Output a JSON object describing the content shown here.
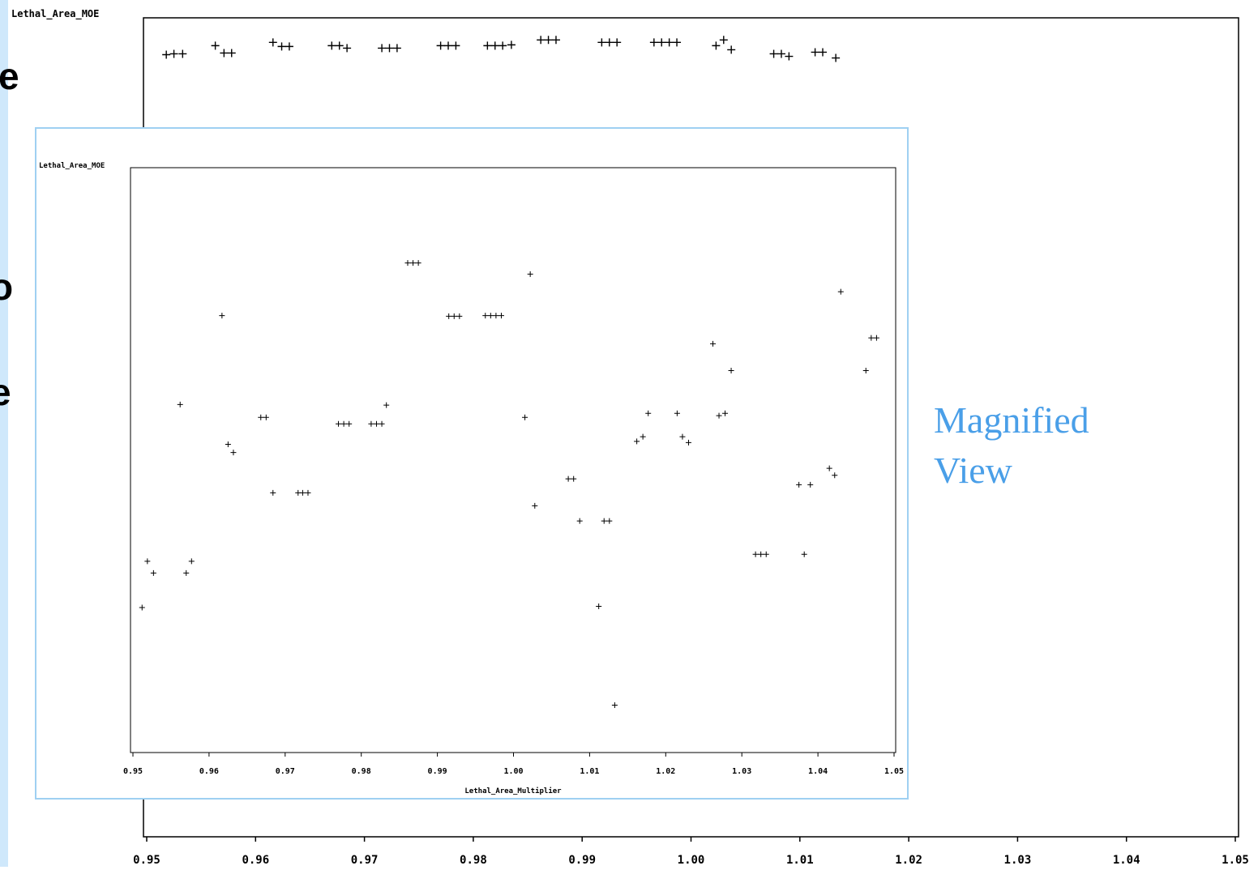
{
  "colors": {
    "slide_accent": "#cfe8fb",
    "inset_border": "#9fd0f2",
    "annotation": "#4a9fe8",
    "mark": "#000000"
  },
  "slide_text_fragments": [
    "e",
    "o",
    "e"
  ],
  "annotation": {
    "line1": "Magnified",
    "line2": "View"
  },
  "chart_data": [
    {
      "id": "full-plot",
      "type": "scatter",
      "title": "",
      "xlabel": "",
      "ylabel": "Lethal_Area_MOE",
      "xlim": [
        0.95,
        1.05
      ],
      "ylim": [
        0,
        1
      ],
      "x_ticks": [
        "0.95",
        "0.96",
        "0.97",
        "0.98",
        "0.99",
        "1.00",
        "1.01",
        "1.02",
        "1.03",
        "1.04",
        "1.05"
      ],
      "grid": false,
      "marker": "+",
      "points": [
        [
          0.9518,
          0.955
        ],
        [
          0.9525,
          0.956
        ],
        [
          0.9533,
          0.956
        ],
        [
          0.9563,
          0.966
        ],
        [
          0.9571,
          0.957
        ],
        [
          0.9578,
          0.957
        ],
        [
          0.9616,
          0.97
        ],
        [
          0.9624,
          0.965
        ],
        [
          0.9631,
          0.965
        ],
        [
          0.967,
          0.966
        ],
        [
          0.9677,
          0.966
        ],
        [
          0.9684,
          0.963
        ],
        [
          0.9716,
          0.963
        ],
        [
          0.9723,
          0.963
        ],
        [
          0.973,
          0.963
        ],
        [
          0.977,
          0.966
        ],
        [
          0.9777,
          0.966
        ],
        [
          0.9784,
          0.966
        ],
        [
          0.9813,
          0.966
        ],
        [
          0.982,
          0.966
        ],
        [
          0.9827,
          0.966
        ],
        [
          0.9835,
          0.967
        ],
        [
          0.9862,
          0.973
        ],
        [
          0.9869,
          0.973
        ],
        [
          0.9876,
          0.973
        ],
        [
          0.9918,
          0.97
        ],
        [
          0.9925,
          0.97
        ],
        [
          0.9932,
          0.97
        ],
        [
          0.9966,
          0.97
        ],
        [
          0.9973,
          0.97
        ],
        [
          0.998,
          0.97
        ],
        [
          0.9987,
          0.97
        ],
        [
          1.0023,
          0.966
        ],
        [
          1.003,
          0.973
        ],
        [
          1.0037,
          0.961
        ],
        [
          1.0076,
          0.956
        ],
        [
          1.0083,
          0.956
        ],
        [
          1.009,
          0.953
        ],
        [
          1.0114,
          0.958
        ],
        [
          1.0121,
          0.958
        ],
        [
          1.0133,
          0.951
        ]
      ]
    },
    {
      "id": "magnified-plot",
      "type": "scatter",
      "title": "",
      "xlabel": "Lethal_Area_Multiplier",
      "ylabel": "Lethal_Area_MOE",
      "xlim": [
        0.95,
        1.05
      ],
      "ylim": [
        0,
        1
      ],
      "x_ticks": [
        "0.95",
        "0.96",
        "0.97",
        "0.98",
        "0.99",
        "1.00",
        "1.01",
        "1.02",
        "1.03",
        "1.04",
        "1.05"
      ],
      "grid": false,
      "marker": "+",
      "points": [
        [
          0.9512,
          0.248
        ],
        [
          0.9519,
          0.327
        ],
        [
          0.9527,
          0.307
        ],
        [
          0.9562,
          0.595
        ],
        [
          0.957,
          0.307
        ],
        [
          0.9577,
          0.327
        ],
        [
          0.9617,
          0.747
        ],
        [
          0.9625,
          0.527
        ],
        [
          0.9632,
          0.513
        ],
        [
          0.9668,
          0.573
        ],
        [
          0.9675,
          0.573
        ],
        [
          0.9684,
          0.444
        ],
        [
          0.9717,
          0.444
        ],
        [
          0.9723,
          0.444
        ],
        [
          0.973,
          0.444
        ],
        [
          0.977,
          0.562
        ],
        [
          0.9777,
          0.562
        ],
        [
          0.9784,
          0.562
        ],
        [
          0.9813,
          0.562
        ],
        [
          0.982,
          0.562
        ],
        [
          0.9827,
          0.562
        ],
        [
          0.9833,
          0.594
        ],
        [
          0.9861,
          0.837
        ],
        [
          0.9868,
          0.837
        ],
        [
          0.9875,
          0.837
        ],
        [
          0.9915,
          0.746
        ],
        [
          0.9922,
          0.746
        ],
        [
          0.9929,
          0.746
        ],
        [
          0.9963,
          0.747
        ],
        [
          0.997,
          0.747
        ],
        [
          0.9977,
          0.747
        ],
        [
          0.9984,
          0.747
        ],
        [
          1.0015,
          0.573
        ],
        [
          1.0022,
          0.818
        ],
        [
          1.0028,
          0.422
        ],
        [
          1.0072,
          0.468
        ],
        [
          1.0079,
          0.468
        ],
        [
          1.0087,
          0.396
        ],
        [
          1.0112,
          0.25
        ],
        [
          1.0119,
          0.396
        ],
        [
          1.0126,
          0.396
        ],
        [
          1.0133,
          0.081
        ],
        [
          1.0162,
          0.532
        ],
        [
          1.017,
          0.54
        ],
        [
          1.0177,
          0.58
        ],
        [
          1.0215,
          0.58
        ],
        [
          1.0222,
          0.54
        ],
        [
          1.023,
          0.53
        ],
        [
          1.0262,
          0.699
        ],
        [
          1.027,
          0.576
        ],
        [
          1.0278,
          0.58
        ],
        [
          1.0286,
          0.653
        ],
        [
          1.0318,
          0.339
        ],
        [
          1.0325,
          0.339
        ],
        [
          1.0332,
          0.339
        ],
        [
          1.0375,
          0.458
        ],
        [
          1.0382,
          0.339
        ],
        [
          1.039,
          0.458
        ],
        [
          1.0415,
          0.486
        ],
        [
          1.0422,
          0.474
        ],
        [
          1.043,
          0.788
        ],
        [
          1.0463,
          0.653
        ],
        [
          1.047,
          0.709
        ],
        [
          1.0477,
          0.709
        ]
      ]
    }
  ]
}
